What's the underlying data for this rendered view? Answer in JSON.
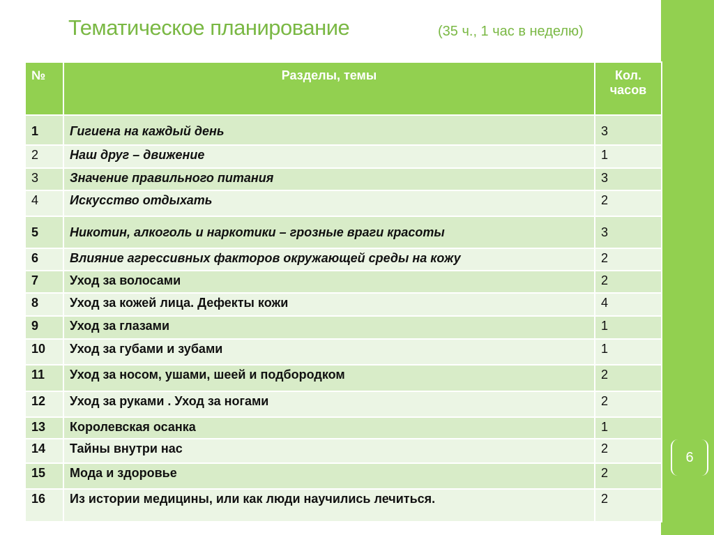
{
  "header": {
    "title": "Тематическое планирование",
    "subtitle": "(35 ч., 1 час в неделю)"
  },
  "table": {
    "columns": [
      "№",
      "Разделы, темы",
      "Кол. часов"
    ],
    "rows": [
      [
        "1",
        "Гигиена на каждый день",
        "3"
      ],
      [
        "2",
        "Наш друг – движение",
        "1"
      ],
      [
        "3",
        "Значение правильного питания",
        "3"
      ],
      [
        "4",
        "Искусство отдыхать",
        "2"
      ],
      [
        "5",
        "Никотин, алкоголь и наркотики – грозные враги красоты",
        "3"
      ],
      [
        "6",
        "Влияние агрессивных факторов окружающей среды на кожу",
        "2"
      ],
      [
        "7",
        "Уход за волосами",
        "2"
      ],
      [
        "8",
        "Уход за кожей лица. Дефекты кожи",
        "4"
      ],
      [
        "9",
        "Уход за глазами",
        "1"
      ],
      [
        "10",
        "Уход за губами и зубами",
        "1"
      ],
      [
        "11",
        "Уход за носом, ушами, шеей и подбородком",
        "2"
      ],
      [
        "12",
        "Уход за руками . Уход за ногами",
        "2"
      ],
      [
        "13",
        "Королевская осанка",
        "1"
      ],
      [
        "14",
        "Тайны внутри нас",
        "2"
      ],
      [
        "15",
        "Мода и здоровье",
        "2"
      ],
      [
        "16",
        "Из истории медицины, или как люди научились лечиться.",
        "2"
      ]
    ]
  },
  "page_number": "6"
}
